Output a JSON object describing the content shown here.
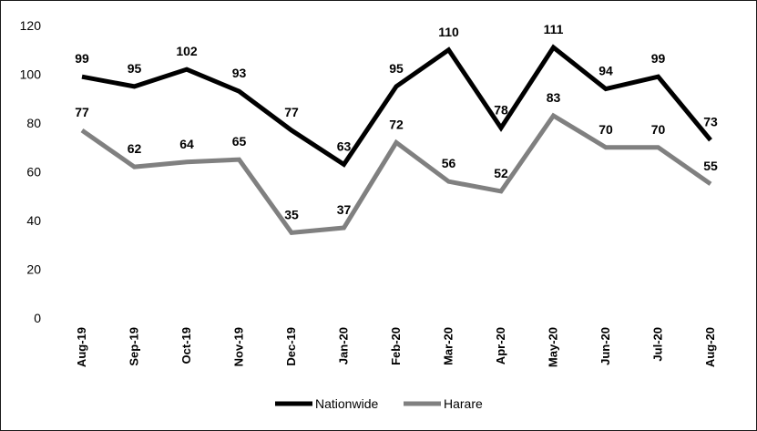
{
  "chart_data": {
    "type": "line",
    "categories": [
      "Aug-19",
      "Sep-19",
      "Oct-19",
      "Nov-19",
      "Dec-19",
      "Jan-20",
      "Feb-20",
      "Mar-20",
      "Apr-20",
      "May-20",
      "Jun-20",
      "Jul-20",
      "Aug-20"
    ],
    "series": [
      {
        "name": "Nationwide",
        "color": "#000000",
        "values": [
          99,
          95,
          102,
          93,
          77,
          63,
          95,
          110,
          78,
          111,
          94,
          99,
          73
        ]
      },
      {
        "name": "Harare",
        "color": "#808080",
        "values": [
          77,
          62,
          64,
          65,
          35,
          37,
          72,
          56,
          52,
          83,
          70,
          70,
          55
        ]
      }
    ],
    "title": "",
    "xlabel": "",
    "ylabel": "",
    "ylim": [
      0,
      120
    ],
    "yticks": [
      0,
      20,
      40,
      60,
      80,
      100,
      120
    ],
    "grid": false,
    "legend_position": "bottom",
    "data_labels": true
  }
}
